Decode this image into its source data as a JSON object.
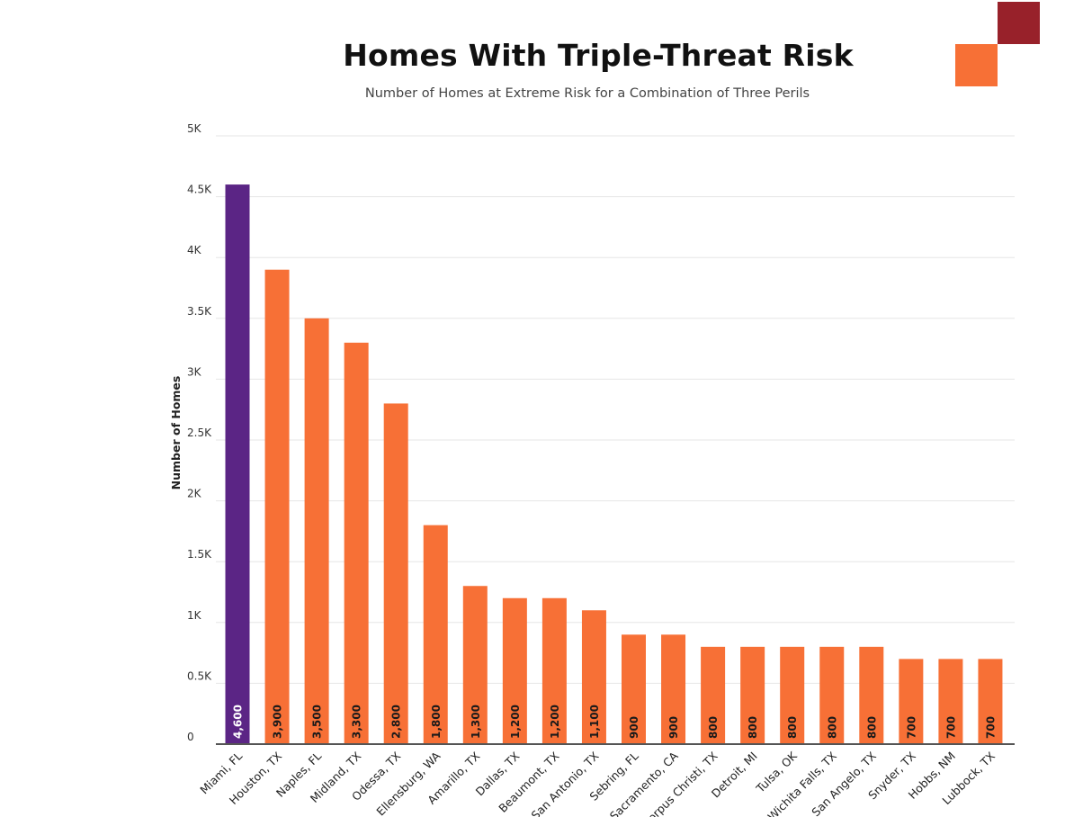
{
  "title": "Homes With Triple-Threat Risk",
  "subtitle": "Number of Homes at Extreme Risk for a Combination of Three Perils",
  "colors": {
    "highlight": "#5b2585",
    "bar": "#f77036",
    "deco_dark": "#98212a",
    "deco_orange": "#f77036",
    "grid": "#e6e6e6",
    "axis": "#555555"
  },
  "chart_data": {
    "type": "bar",
    "ylabel": "Number of Homes",
    "xlabel": "",
    "ylim": [
      0,
      5000
    ],
    "yticks": [
      {
        "value": 0,
        "label": "0"
      },
      {
        "value": 500,
        "label": "0.5K"
      },
      {
        "value": 1000,
        "label": "1K"
      },
      {
        "value": 1500,
        "label": "1.5K"
      },
      {
        "value": 2000,
        "label": "2K"
      },
      {
        "value": 2500,
        "label": "2.5K"
      },
      {
        "value": 3000,
        "label": "3K"
      },
      {
        "value": 3500,
        "label": "3.5K"
      },
      {
        "value": 4000,
        "label": "4K"
      },
      {
        "value": 4500,
        "label": "4.5K"
      },
      {
        "value": 5000,
        "label": "5K"
      }
    ],
    "grid": true,
    "highlighted_category": "Miami, FL",
    "categories": [
      "Miami, FL",
      "Houston, TX",
      "Naples, FL",
      "Midland, TX",
      "Odessa, TX",
      "Ellensburg, WA",
      "Amarillo, TX",
      "Dallas, TX",
      "Beaumont, TX",
      "San Antonio, TX",
      "Sebring, FL",
      "Sacramento, CA",
      "Corpus Christi, TX",
      "Detroit, MI",
      "Tulsa, OK",
      "Wichita Falls, TX",
      "San Angelo, TX",
      "Snyder, TX",
      "Hobbs, NM",
      "Lubbock, TX"
    ],
    "values": [
      4600,
      3900,
      3500,
      3300,
      2800,
      1800,
      1300,
      1200,
      1200,
      1100,
      900,
      900,
      800,
      800,
      800,
      800,
      800,
      700,
      700,
      700
    ],
    "data_labels": [
      "4,600",
      "3,900",
      "3,500",
      "3,300",
      "2,800",
      "1,800",
      "1,300",
      "1,200",
      "1,200",
      "1,100",
      "900",
      "900",
      "800",
      "800",
      "800",
      "800",
      "800",
      "700",
      "700",
      "700"
    ]
  }
}
